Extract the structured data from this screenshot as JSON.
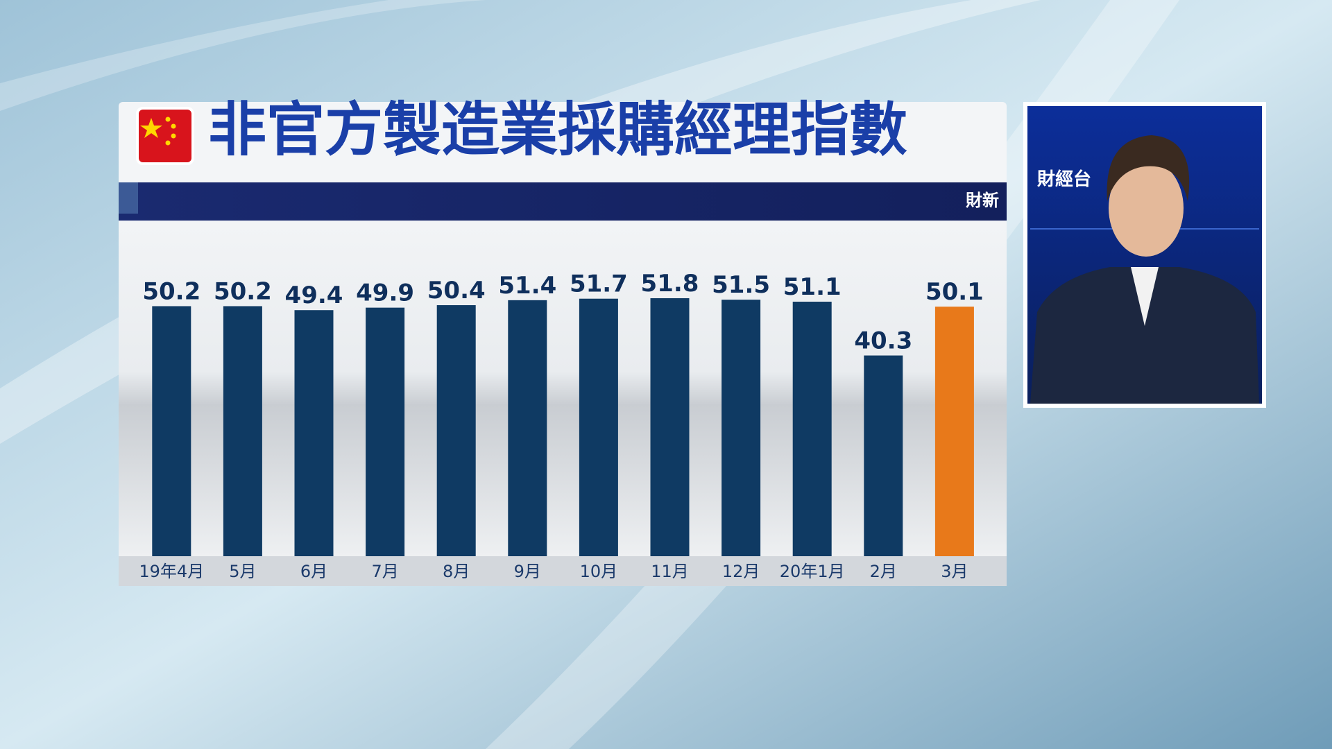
{
  "chart_data": {
    "type": "bar",
    "title": "非官方製造業採購經理指數",
    "source": "財新",
    "categories": [
      "19年4月",
      "5月",
      "6月",
      "7月",
      "8月",
      "9月",
      "10月",
      "11月",
      "12月",
      "20年1月",
      "2月",
      "3月"
    ],
    "values": [
      50.2,
      50.2,
      49.4,
      49.9,
      50.4,
      51.4,
      51.7,
      51.8,
      51.5,
      51.1,
      40.3,
      50.1
    ],
    "colors": [
      "#0f3a63",
      "#0f3a63",
      "#0f3a63",
      "#0f3a63",
      "#0f3a63",
      "#0f3a63",
      "#0f3a63",
      "#0f3a63",
      "#0f3a63",
      "#0f3a63",
      "#0f3a63",
      "#e8791a"
    ],
    "ylim": [
      0,
      66
    ]
  },
  "channel_logo": "財經台"
}
